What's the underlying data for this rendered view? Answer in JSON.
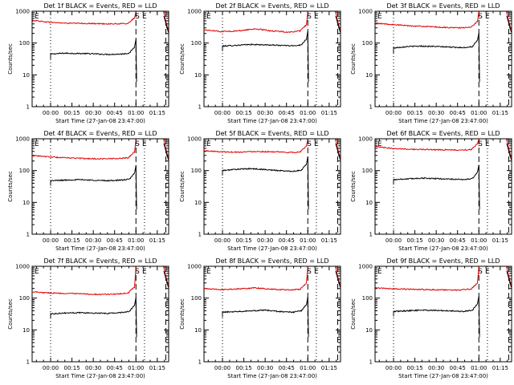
{
  "colors": {
    "events": "#000000",
    "lld": "#e00000",
    "background": "#ffffff",
    "axes": "#000000"
  },
  "panel_layout": {
    "rows": 3,
    "cols": 3
  },
  "chart_data": [
    {
      "type": "line",
      "title": "Det 1f BLACK = Events, RED = LLD",
      "xlabel": "Start Time (27-Jan-08 23:47:00)",
      "ylabel": "Counts/sec",
      "x_tick_labels": [
        "00:00",
        "00:15",
        "00:30",
        "00:45",
        "01:00",
        "01:15"
      ],
      "x_tick_minutes": [
        0,
        15,
        30,
        45,
        60,
        75
      ],
      "xlim": [
        -13,
        83
      ],
      "y_tick_labels": [
        "1",
        "10",
        "100",
        "1000"
      ],
      "ylim": [
        1,
        1000
      ],
      "y_scale": "log",
      "saa_labels": [
        "S",
        "E"
      ],
      "saa_minutes": [
        61,
        66
      ],
      "dotted_lines_min": [
        0,
        66
      ],
      "dashed_lines_min": [
        60,
        81
      ],
      "series": [
        {
          "name": "BLACK = Events",
          "color": "#000000",
          "start_min": 0,
          "end_min": 59,
          "levels": [
            45,
            48,
            47,
            46,
            44,
            45,
            50
          ]
        },
        {
          "name": "RED = LLD",
          "color": "#e00000",
          "start_min": -13,
          "end_min": 59,
          "levels": [
            520,
            450,
            420,
            415,
            405,
            400,
            420
          ]
        }
      ]
    },
    {
      "type": "line",
      "title": "Det 2f BLACK = Events, RED = LLD",
      "xlabel": "Start Time (27-Jan-08 23:47:00)",
      "ylabel": "Counts/sec",
      "x_tick_labels": [
        "00:00",
        "00:15",
        "00:30",
        "00:45",
        "01:00",
        "01:15"
      ],
      "x_tick_minutes": [
        0,
        15,
        30,
        45,
        60,
        75
      ],
      "xlim": [
        -13,
        83
      ],
      "y_tick_labels": [
        "1",
        "10",
        "100",
        "1000"
      ],
      "ylim": [
        1,
        1000
      ],
      "y_scale": "log",
      "saa_labels": [
        "S",
        "E"
      ],
      "saa_minutes": [
        61,
        66
      ],
      "dotted_lines_min": [
        0,
        66
      ],
      "dashed_lines_min": [
        60,
        81
      ],
      "series": [
        {
          "name": "BLACK = Events",
          "color": "#000000",
          "start_min": 0,
          "end_min": 59,
          "levels": [
            80,
            85,
            90,
            88,
            85,
            82,
            90
          ]
        },
        {
          "name": "RED = LLD",
          "color": "#e00000",
          "start_min": -13,
          "end_min": 59,
          "levels": [
            260,
            230,
            240,
            280,
            240,
            220,
            250
          ]
        }
      ]
    },
    {
      "type": "line",
      "title": "Det 3f BLACK = Events, RED = LLD",
      "xlabel": "Start Time (27-Jan-08 23:47:00)",
      "ylabel": "Counts/sec",
      "x_tick_labels": [
        "00:00",
        "00:15",
        "00:30",
        "00:45",
        "01:00",
        "01:15"
      ],
      "x_tick_minutes": [
        0,
        15,
        30,
        45,
        60,
        75
      ],
      "xlim": [
        -13,
        83
      ],
      "y_tick_labels": [
        "1",
        "10",
        "100",
        "1000"
      ],
      "ylim": [
        1,
        1000
      ],
      "y_scale": "log",
      "saa_labels": [
        "S",
        "E"
      ],
      "saa_minutes": [
        61,
        66
      ],
      "dotted_lines_min": [
        0,
        66
      ],
      "dashed_lines_min": [
        60,
        81
      ],
      "series": [
        {
          "name": "BLACK = Events",
          "color": "#000000",
          "start_min": 0,
          "end_min": 59,
          "levels": [
            70,
            78,
            80,
            78,
            75,
            72,
            80
          ]
        },
        {
          "name": "RED = LLD",
          "color": "#e00000",
          "start_min": -13,
          "end_min": 59,
          "levels": [
            420,
            380,
            350,
            330,
            310,
            300,
            320
          ]
        }
      ]
    },
    {
      "type": "line",
      "title": "Det 4f BLACK = Events, RED = LLD",
      "xlabel": "Start Time (27-Jan-08 23:47:00)",
      "ylabel": "Counts/sec",
      "x_tick_labels": [
        "00:00",
        "00:15",
        "00:30",
        "00:45",
        "01:00",
        "01:15"
      ],
      "x_tick_minutes": [
        0,
        15,
        30,
        45,
        60,
        75
      ],
      "xlim": [
        -13,
        83
      ],
      "y_tick_labels": [
        "1",
        "10",
        "100",
        "1000"
      ],
      "ylim": [
        1,
        1000
      ],
      "y_scale": "log",
      "saa_labels": [
        "S",
        "E"
      ],
      "saa_minutes": [
        61,
        66
      ],
      "dotted_lines_min": [
        0,
        66
      ],
      "dashed_lines_min": [
        60,
        81
      ],
      "series": [
        {
          "name": "BLACK = Events",
          "color": "#000000",
          "start_min": 0,
          "end_min": 59,
          "levels": [
            48,
            50,
            52,
            50,
            48,
            50,
            55
          ]
        },
        {
          "name": "RED = LLD",
          "color": "#e00000",
          "start_min": -13,
          "end_min": 59,
          "levels": [
            300,
            270,
            250,
            240,
            235,
            240,
            260
          ]
        }
      ]
    },
    {
      "type": "line",
      "title": "Det 5f BLACK = Events, RED = LLD",
      "xlabel": "Start Time (27-Jan-08 23:47:00)",
      "ylabel": "Counts/sec",
      "x_tick_labels": [
        "00:00",
        "00:15",
        "00:30",
        "00:45",
        "01:00",
        "01:15"
      ],
      "x_tick_minutes": [
        0,
        15,
        30,
        45,
        60,
        75
      ],
      "xlim": [
        -13,
        83
      ],
      "y_tick_labels": [
        "1",
        "10",
        "100",
        "1000"
      ],
      "ylim": [
        1,
        1000
      ],
      "y_scale": "log",
      "saa_labels": [
        "S",
        "E"
      ],
      "saa_minutes": [
        61,
        66
      ],
      "dotted_lines_min": [
        0,
        66
      ],
      "dashed_lines_min": [
        60,
        81
      ],
      "series": [
        {
          "name": "BLACK = Events",
          "color": "#000000",
          "start_min": 0,
          "end_min": 59,
          "levels": [
            100,
            110,
            115,
            108,
            100,
            95,
            105
          ]
        },
        {
          "name": "RED = LLD",
          "color": "#e00000",
          "start_min": -13,
          "end_min": 59,
          "levels": [
            420,
            390,
            380,
            400,
            390,
            370,
            390
          ]
        }
      ]
    },
    {
      "type": "line",
      "title": "Det 6f BLACK = Events, RED = LLD",
      "xlabel": "Start Time (27-Jan-08 23:47:00)",
      "ylabel": "Counts/sec",
      "x_tick_labels": [
        "00:00",
        "00:15",
        "00:30",
        "00:45",
        "01:00",
        "01:15"
      ],
      "x_tick_minutes": [
        0,
        15,
        30,
        45,
        60,
        75
      ],
      "xlim": [
        -13,
        83
      ],
      "y_tick_labels": [
        "1",
        "10",
        "100",
        "1000"
      ],
      "ylim": [
        1,
        1000
      ],
      "y_scale": "log",
      "saa_labels": [
        "S",
        "E"
      ],
      "saa_minutes": [
        61,
        66
      ],
      "dotted_lines_min": [
        0,
        66
      ],
      "dashed_lines_min": [
        60,
        81
      ],
      "series": [
        {
          "name": "BLACK = Events",
          "color": "#000000",
          "start_min": 0,
          "end_min": 59,
          "levels": [
            52,
            55,
            58,
            56,
            54,
            52,
            58
          ]
        },
        {
          "name": "RED = LLD",
          "color": "#e00000",
          "start_min": -13,
          "end_min": 59,
          "levels": [
            560,
            500,
            470,
            460,
            450,
            440,
            470
          ]
        }
      ]
    },
    {
      "type": "line",
      "title": "Det 7f BLACK = Events, RED = LLD",
      "xlabel": "Start Time (27-Jan-08 23:47:00)",
      "ylabel": "Counts/sec",
      "x_tick_labels": [
        "00:00",
        "00:15",
        "00:30",
        "00:45",
        "01:00",
        "01:15"
      ],
      "x_tick_minutes": [
        0,
        15,
        30,
        45,
        60,
        75
      ],
      "xlim": [
        -13,
        83
      ],
      "y_tick_labels": [
        "1",
        "10",
        "100",
        "1000"
      ],
      "ylim": [
        1,
        1000
      ],
      "y_scale": "log",
      "saa_labels": [
        "S",
        "E"
      ],
      "saa_minutes": [
        61,
        66
      ],
      "dotted_lines_min": [
        0,
        66
      ],
      "dashed_lines_min": [
        60,
        81
      ],
      "series": [
        {
          "name": "BLACK = Events",
          "color": "#000000",
          "start_min": 0,
          "end_min": 59,
          "levels": [
            32,
            34,
            35,
            34,
            33,
            35,
            40
          ]
        },
        {
          "name": "RED = LLD",
          "color": "#e00000",
          "start_min": -13,
          "end_min": 59,
          "levels": [
            160,
            145,
            140,
            135,
            130,
            135,
            150
          ]
        }
      ]
    },
    {
      "type": "line",
      "title": "Det 8f BLACK = Events, RED = LLD",
      "xlabel": "Start Time (27-Jan-08 23:47:00)",
      "ylabel": "Counts/sec",
      "x_tick_labels": [
        "00:00",
        "00:15",
        "00:30",
        "00:45",
        "01:00",
        "01:15"
      ],
      "x_tick_minutes": [
        0,
        15,
        30,
        45,
        60,
        75
      ],
      "xlim": [
        -13,
        83
      ],
      "y_tick_labels": [
        "1",
        "10",
        "100",
        "1000"
      ],
      "ylim": [
        1,
        1000
      ],
      "y_scale": "log",
      "saa_labels": [
        "S",
        "E"
      ],
      "saa_minutes": [
        61,
        66
      ],
      "dotted_lines_min": [
        0,
        66
      ],
      "dashed_lines_min": [
        60,
        81
      ],
      "series": [
        {
          "name": "BLACK = Events",
          "color": "#000000",
          "start_min": 0,
          "end_min": 59,
          "levels": [
            36,
            38,
            40,
            42,
            38,
            36,
            42
          ]
        },
        {
          "name": "RED = LLD",
          "color": "#e00000",
          "start_min": -13,
          "end_min": 59,
          "levels": [
            200,
            185,
            195,
            210,
            190,
            180,
            195
          ]
        }
      ]
    },
    {
      "type": "line",
      "title": "Det 9f BLACK = Events, RED = LLD",
      "xlabel": "Start Time (27-Jan-08 23:47:00)",
      "ylabel": "Counts/sec",
      "x_tick_labels": [
        "00:00",
        "00:15",
        "00:30",
        "00:45",
        "01:00",
        "01:15"
      ],
      "x_tick_minutes": [
        0,
        15,
        30,
        45,
        60,
        75
      ],
      "xlim": [
        -13,
        83
      ],
      "y_tick_labels": [
        "1",
        "10",
        "100",
        "1000"
      ],
      "ylim": [
        1,
        1000
      ],
      "y_scale": "log",
      "saa_labels": [
        "S",
        "E"
      ],
      "saa_minutes": [
        61,
        66
      ],
      "dotted_lines_min": [
        0,
        66
      ],
      "dashed_lines_min": [
        60,
        81
      ],
      "series": [
        {
          "name": "BLACK = Events",
          "color": "#000000",
          "start_min": 0,
          "end_min": 59,
          "levels": [
            38,
            40,
            42,
            41,
            40,
            38,
            44
          ]
        },
        {
          "name": "RED = LLD",
          "color": "#e00000",
          "start_min": -13,
          "end_min": 59,
          "levels": [
            210,
            195,
            190,
            185,
            180,
            180,
            200
          ]
        }
      ]
    }
  ]
}
